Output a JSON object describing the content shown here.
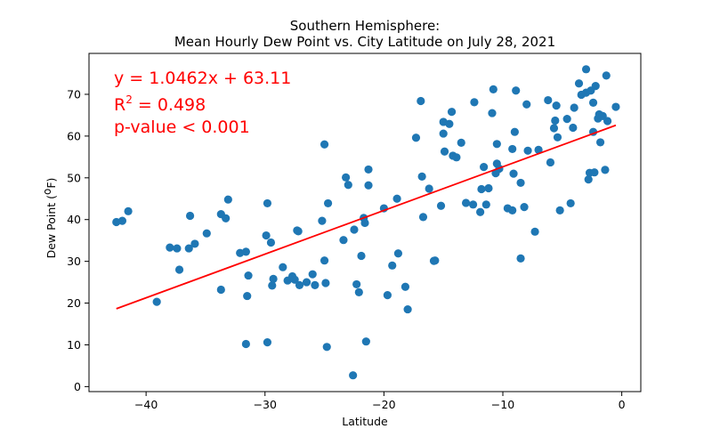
{
  "chart_data": {
    "type": "scatter",
    "title_line1": "Southern Hemisphere:",
    "title_line2": "Mean Hourly Dew Point vs. City Latitude  on July 28, 2021",
    "xlabel": "Latitude",
    "ylabel_main": "Dew Point (",
    "ylabel_sup": "o",
    "ylabel_end": "F)",
    "xlim": [
      -44.8,
      1.6
    ],
    "ylim": [
      -1.2,
      79.8
    ],
    "xticks": [
      -40,
      -30,
      -20,
      -10,
      0
    ],
    "xtick_labels": [
      "−40",
      "−30",
      "−20",
      "−10",
      "0"
    ],
    "yticks": [
      0,
      10,
      20,
      30,
      40,
      50,
      60,
      70
    ],
    "yticks_labels": [
      "0",
      "10",
      "20",
      "30",
      "40",
      "50",
      "60",
      "70"
    ],
    "grid": false,
    "colors": {
      "points": "#1f77b4",
      "regression": "#ff0000",
      "annotation": "#ff0000"
    },
    "regression": {
      "slope": 1.0462,
      "intercept": 63.11,
      "x_range": [
        -42.5,
        -0.5
      ]
    },
    "annotation": {
      "line1": "y = 1.0462x + 63.11",
      "r_prefix": "R",
      "r_sup": "2",
      "r_suffix": " = 0.498",
      "line3": "p-value < 0.001"
    },
    "x": [
      -42.5,
      -42.0,
      -41.5,
      -39.1,
      -38.0,
      -37.4,
      -37.2,
      -36.4,
      -36.3,
      -35.9,
      -34.9,
      -33.7,
      -33.7,
      -33.3,
      -33.1,
      -32.1,
      -31.6,
      -31.6,
      -31.5,
      -31.4,
      -29.9,
      -29.8,
      -29.8,
      -29.5,
      -29.4,
      -29.3,
      -28.5,
      -28.1,
      -27.7,
      -27.5,
      -27.3,
      -27.2,
      -27.1,
      -26.5,
      -26.0,
      -25.8,
      -25.2,
      -25.0,
      -25.0,
      -24.9,
      -24.8,
      -24.7,
      -23.4,
      -23.2,
      -23.0,
      -22.6,
      -22.5,
      -22.3,
      -22.1,
      -21.9,
      -21.7,
      -21.6,
      -21.5,
      -21.3,
      -21.3,
      -20.0,
      -19.7,
      -19.3,
      -18.9,
      -18.8,
      -18.2,
      -18.0,
      -17.3,
      -16.9,
      -16.8,
      -16.7,
      -16.2,
      -15.8,
      -15.7,
      -15.2,
      -15.0,
      -15.0,
      -14.9,
      -14.5,
      -14.3,
      -14.2,
      -13.9,
      -13.5,
      -13.1,
      -12.5,
      -12.4,
      -11.9,
      -11.8,
      -11.6,
      -11.4,
      -11.2,
      -10.9,
      -10.8,
      -10.6,
      -10.5,
      -10.5,
      -10.3,
      -9.6,
      -9.2,
      -9.2,
      -9.1,
      -9.0,
      -8.9,
      -8.5,
      -8.5,
      -8.2,
      -8.0,
      -7.9,
      -7.3,
      -7.0,
      -6.2,
      -6.0,
      -5.7,
      -5.6,
      -5.5,
      -5.4,
      -5.2,
      -4.6,
      -4.3,
      -4.1,
      -4.0,
      -3.6,
      -3.4,
      -3.0,
      -3.0,
      -2.8,
      -2.7,
      -2.6,
      -2.4,
      -2.4,
      -2.3,
      -2.2,
      -2.0,
      -1.9,
      -1.8,
      -1.6,
      -1.4,
      -1.3,
      -1.2,
      -0.5
    ],
    "y": [
      39.4,
      39.7,
      42.0,
      20.3,
      33.3,
      33.1,
      28.0,
      33.1,
      40.9,
      34.2,
      36.7,
      23.2,
      41.3,
      40.3,
      44.8,
      32.0,
      10.2,
      32.3,
      21.7,
      26.6,
      36.2,
      43.9,
      10.6,
      34.5,
      24.2,
      25.8,
      28.6,
      25.4,
      26.4,
      25.6,
      37.4,
      37.2,
      24.3,
      25.0,
      26.9,
      24.3,
      39.7,
      58.0,
      30.2,
      24.8,
      9.5,
      43.9,
      35.1,
      50.1,
      48.3,
      2.7,
      37.6,
      24.5,
      22.6,
      31.3,
      40.4,
      39.2,
      10.8,
      52.0,
      48.2,
      42.7,
      21.9,
      29.0,
      45.0,
      31.9,
      23.9,
      18.5,
      59.6,
      68.4,
      50.3,
      40.6,
      47.4,
      30.1,
      30.2,
      43.3,
      60.6,
      63.4,
      56.3,
      62.9,
      65.8,
      55.3,
      54.9,
      58.4,
      44.0,
      43.6,
      68.1,
      41.8,
      47.3,
      52.6,
      43.6,
      47.5,
      65.5,
      71.2,
      51.1,
      58.1,
      53.4,
      52.2,
      42.7,
      42.2,
      56.9,
      51.0,
      61.0,
      70.9,
      48.8,
      30.7,
      43.0,
      67.6,
      56.5,
      37.1,
      56.7,
      68.6,
      53.7,
      61.9,
      63.7,
      67.3,
      59.7,
      42.2,
      64.1,
      43.9,
      62.0,
      66.8,
      72.6,
      69.9,
      70.4,
      76.0,
      49.6,
      51.2,
      70.9,
      68.0,
      61.0,
      51.3,
      72.0,
      64.2,
      65.2,
      58.5,
      64.8,
      51.9,
      74.5,
      63.6,
      67.0
    ]
  }
}
